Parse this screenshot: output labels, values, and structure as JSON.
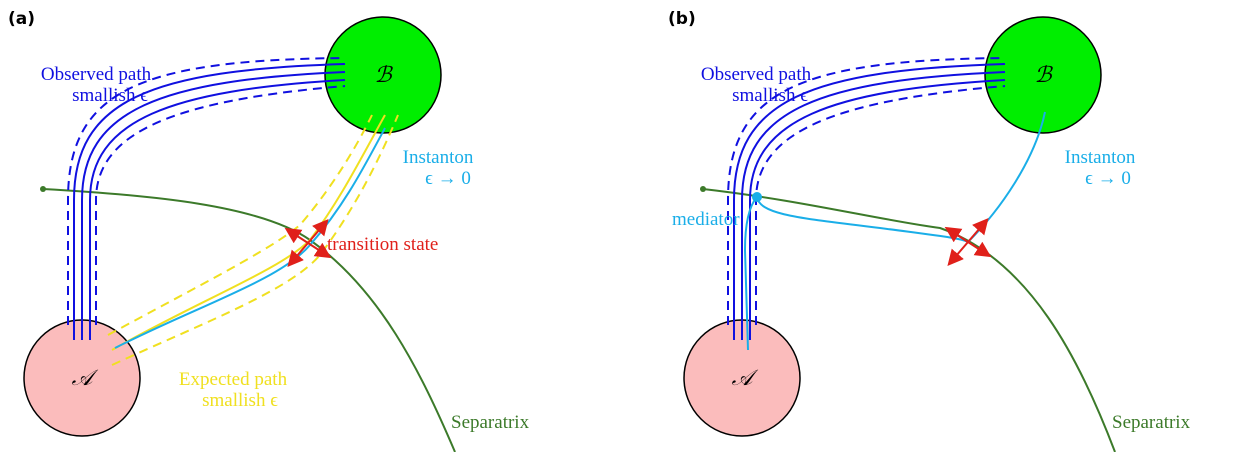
{
  "panels": [
    {
      "label": "(a)",
      "node_b": "ℬ",
      "node_a": "𝒜",
      "observed": [
        "Observed path",
        "smallish ϵ"
      ],
      "instanton": [
        "Instanton",
        "ϵ → 0"
      ],
      "transition": "transition state",
      "expected": [
        "Expected path",
        "smallish ϵ"
      ],
      "separatrix": "Separatrix"
    },
    {
      "label": "(b)",
      "node_b": "ℬ",
      "node_a": "𝒜",
      "observed": [
        "Observed path",
        "smallish ϵ"
      ],
      "instanton": [
        "Instanton",
        "ϵ → 0"
      ],
      "mediator": "mediator",
      "separatrix": "Separatrix"
    }
  ]
}
